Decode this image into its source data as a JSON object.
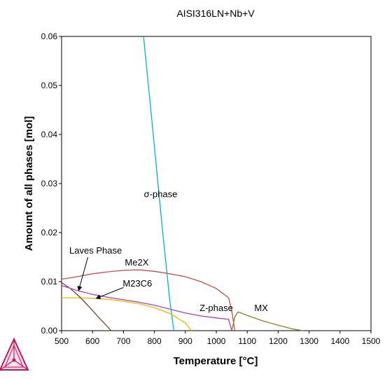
{
  "chart_data": {
    "type": "line",
    "title": "AISI316LN+Nb+V",
    "xlabel": "Temperature [°C]",
    "ylabel": "Amount of all phases [mol]",
    "xlim": [
      500,
      1500
    ],
    "ylim": [
      0,
      0.06
    ],
    "xticks": [
      500,
      600,
      700,
      800,
      900,
      1000,
      1100,
      1200,
      1300,
      1400,
      1500
    ],
    "yticks": [
      0.0,
      0.01,
      0.02,
      0.03,
      0.04,
      0.05,
      0.06
    ],
    "ytick_labels": [
      "0.00",
      "0.01",
      "0.02",
      "0.03",
      "0.04",
      "0.05",
      "0.06"
    ],
    "grid": false,
    "series": [
      {
        "name": "σ-phase",
        "color": "#00b4d8",
        "x": [
          765,
          790,
          810,
          830,
          850,
          863
        ],
        "y": [
          0.06,
          0.044,
          0.031,
          0.018,
          0.006,
          0.0
        ]
      },
      {
        "name": "Me2X",
        "color": "#c0504d",
        "x": [
          500,
          550,
          600,
          650,
          700,
          750,
          800,
          850,
          900,
          950,
          1000,
          1040,
          1050,
          1060
        ],
        "y": [
          0.0105,
          0.011,
          0.0116,
          0.012,
          0.0123,
          0.0124,
          0.0121,
          0.0116,
          0.011,
          0.01,
          0.0086,
          0.0067,
          0.004,
          0.0
        ]
      },
      {
        "name": "M23C6",
        "color": "#e8b800",
        "x": [
          500,
          550,
          600,
          650,
          700,
          750,
          800,
          850,
          900,
          920
        ],
        "y": [
          0.0067,
          0.0067,
          0.0066,
          0.0064,
          0.006,
          0.0055,
          0.0047,
          0.0035,
          0.0016,
          0.0
        ]
      },
      {
        "name": "Laves Phase",
        "color": "#6b4a2a",
        "x": [
          500,
          530,
          560,
          590,
          620,
          650,
          660
        ],
        "y": [
          0.0098,
          0.0085,
          0.0068,
          0.0048,
          0.0027,
          0.0007,
          0.0
        ]
      },
      {
        "name": "Z-phase",
        "color": "#b040c0",
        "x": [
          500,
          550,
          600,
          650,
          700,
          750,
          800,
          850,
          900,
          950,
          1000,
          1040,
          1050
        ],
        "y": [
          0.0092,
          0.0082,
          0.0074,
          0.0068,
          0.0063,
          0.0058,
          0.0052,
          0.0044,
          0.0036,
          0.003,
          0.0026,
          0.0023,
          0.0
        ]
      },
      {
        "name": "MX",
        "color": "#8b7a2a",
        "x": [
          1050,
          1060,
          1070,
          1080,
          1100,
          1150,
          1200,
          1250,
          1280
        ],
        "y": [
          0.0,
          0.0028,
          0.0038,
          0.0036,
          0.0031,
          0.002,
          0.0011,
          0.0003,
          0.0
        ]
      }
    ],
    "annotations": [
      {
        "text": "σ-phase",
        "x": 820,
        "y": 0.0272
      },
      {
        "text": "Laves Phase",
        "x": 610,
        "y": 0.0157
      },
      {
        "text": "Me2X",
        "x": 743,
        "y": 0.0133
      },
      {
        "text": "M23C6",
        "x": 745,
        "y": 0.009
      },
      {
        "text": "Z-phase",
        "x": 1000,
        "y": 0.004
      },
      {
        "text": "MX",
        "x": 1145,
        "y": 0.004
      }
    ]
  }
}
